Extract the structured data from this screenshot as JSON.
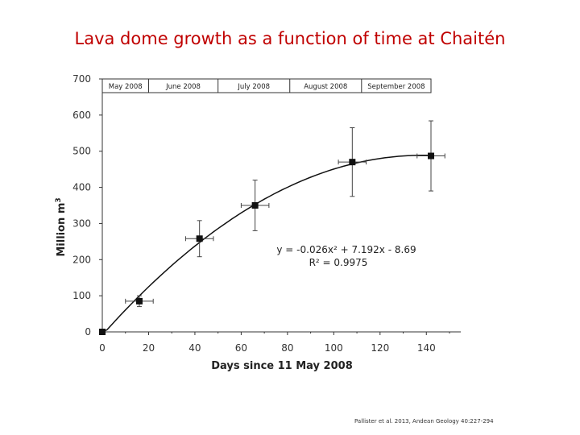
{
  "title": "Lava dome growth as a function of time at Chaitén",
  "citation": "Pallister et al. 2013, Andean Geology 40:227-294",
  "chart_data": {
    "type": "scatter",
    "xlabel": "Days since 11 May 2008",
    "ylabel_main": "Million",
    "ylabel_unit": "m",
    "ylabel_exp": "3",
    "xlim": [
      0,
      150
    ],
    "ylim": [
      0,
      700
    ],
    "xticks": [
      0,
      20,
      40,
      60,
      80,
      100,
      120,
      140
    ],
    "yticks": [
      0,
      100,
      200,
      300,
      400,
      500,
      600,
      700
    ],
    "grid": false,
    "months": [
      "May 2008",
      "June 2008",
      "July 2008",
      "August 2008",
      "September 2008"
    ],
    "month_boundaries": [
      0,
      20,
      50,
      81,
      112,
      142
    ],
    "points": [
      {
        "x": 0,
        "y": 0,
        "xerr": 0,
        "yerr_low": 0,
        "yerr_high": 0
      },
      {
        "x": 16,
        "y": 85,
        "xerr": 6,
        "yerr_low": 15,
        "yerr_high": 15
      },
      {
        "x": 42,
        "y": 258,
        "xerr": 6,
        "yerr_low": 50,
        "yerr_high": 50
      },
      {
        "x": 66,
        "y": 350,
        "xerr": 6,
        "yerr_low": 70,
        "yerr_high": 70
      },
      {
        "x": 108,
        "y": 470,
        "xerr": 6,
        "yerr_low": 95,
        "yerr_high": 95
      },
      {
        "x": 142,
        "y": 487,
        "xerr": 6,
        "yerr_low": 97,
        "yerr_high": 97
      }
    ],
    "fit": {
      "a": -0.026,
      "b": 7.192,
      "c": -8.69
    },
    "equation_text": "y = -0.026x² + 7.192x - 8.69",
    "r2_text": "R² = 0.9975"
  }
}
